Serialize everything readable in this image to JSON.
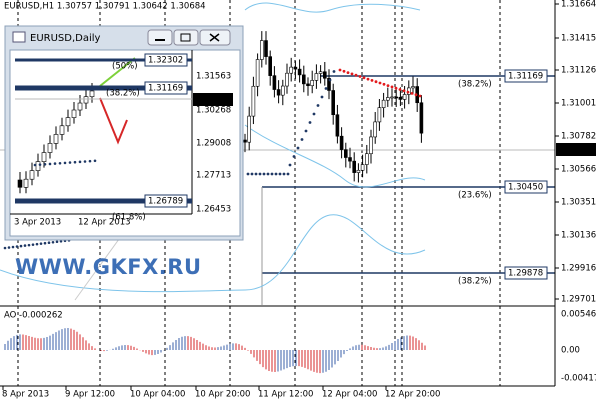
{
  "window": {
    "title": "EURUSD,H1  1.30757 1.30791 1.30642 1.30684",
    "price_labels": [
      "1.31664",
      "1.31415",
      "1.31126",
      "1.31001",
      "1.30782",
      "1.30566",
      "1.30351",
      "1.30136",
      "1.29916",
      "1.29701"
    ],
    "level_boxes": [
      "1.31169",
      "1.30450",
      "1.29878"
    ],
    "level_fibs": [
      "(38.2%)",
      "(23.6%)",
      "(38.2%)"
    ],
    "current_price": "1.30684",
    "indicator": {
      "label": "AO -0.000262",
      "axis_labels": [
        "0.005461",
        "0.00",
        "-0.00417"
      ]
    },
    "time_labels": [
      "8 Apr 2013",
      "9 Apr 12:00",
      "10 Apr 04:00",
      "10 Apr 20:00",
      "11 Apr 12:00",
      "12 Apr 04:00",
      "12 Apr 20:00"
    ]
  },
  "inset": {
    "title": "EURUSD,Daily",
    "price_labels": [
      "1.31563",
      "1.30268",
      "1.29008",
      "1.27713",
      "1.26453"
    ],
    "level_boxes": [
      "1.32302",
      "1.31169",
      "1.26789"
    ],
    "level_fibs": [
      "(50%)",
      "(38.2%)",
      "(61.8%)"
    ],
    "current_price": "1.30684",
    "time_labels": [
      "3 Apr 2013",
      "12 Apr 2013"
    ]
  },
  "watermark": "WWW.GKFX.RU"
}
